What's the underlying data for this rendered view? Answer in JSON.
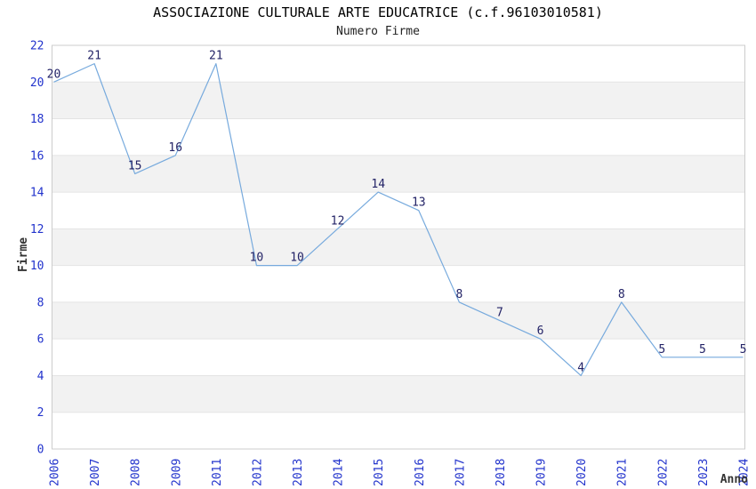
{
  "header": {
    "title": "ASSOCIAZIONE CULTURALE ARTE EDUCATRICE (c.f.96103010581)",
    "subtitle": "Numero Firme"
  },
  "chart_data": {
    "type": "line",
    "title": "ASSOCIAZIONE CULTURALE ARTE EDUCATRICE (c.f.96103010581)",
    "subtitle": "Numero Firme",
    "xlabel": "Anno",
    "ylabel": "Firme",
    "categories": [
      "2006",
      "2007",
      "2008",
      "2009",
      "2011",
      "2012",
      "2013",
      "2014",
      "2015",
      "2016",
      "2017",
      "2018",
      "2019",
      "2020",
      "2021",
      "2022",
      "2023",
      "2024"
    ],
    "values": [
      20,
      21,
      15,
      16,
      21,
      10,
      10,
      12,
      14,
      13,
      8,
      7,
      6,
      4,
      8,
      5,
      5,
      5
    ],
    "ylim": [
      0,
      22
    ],
    "yticks": [
      0,
      2,
      4,
      6,
      8,
      10,
      12,
      14,
      16,
      18,
      20,
      22
    ],
    "grid": "horizontal-alternating-bands",
    "legend": "none",
    "colors": {
      "line": "#77aadd",
      "tick_label": "#2233cc",
      "point_label": "#222266",
      "band": "#f2f2f2",
      "band_alt": "#ffffff",
      "gridline": "#e4e4e4",
      "border": "#cccccc",
      "title": "#000000",
      "axis_title": "#333333"
    }
  }
}
